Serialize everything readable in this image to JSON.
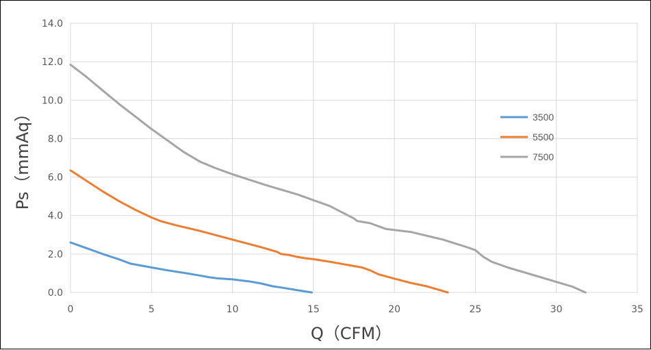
{
  "chart_data": {
    "type": "line",
    "title": "",
    "xlabel": "Q（CFM）",
    "ylabel": "Ps（mmAq）",
    "xlim": [
      0,
      35
    ],
    "ylim": [
      0,
      14
    ],
    "x_ticks": [
      "0",
      "5",
      "10",
      "15",
      "20",
      "25",
      "30",
      "35"
    ],
    "y_ticks": [
      "0.0",
      "2.0",
      "4.0",
      "6.0",
      "8.0",
      "10.0",
      "12.0",
      "14.0"
    ],
    "grid": true,
    "legend_position": "right",
    "series": [
      {
        "name": "3500",
        "color": "#5B9BD5",
        "points": [
          [
            0,
            2.6
          ],
          [
            1,
            2.3
          ],
          [
            2,
            2.0
          ],
          [
            3,
            1.72
          ],
          [
            3.7,
            1.5
          ],
          [
            5,
            1.3
          ],
          [
            6,
            1.15
          ],
          [
            7,
            1.02
          ],
          [
            8,
            0.88
          ],
          [
            8.5,
            0.8
          ],
          [
            9,
            0.74
          ],
          [
            10,
            0.68
          ],
          [
            11,
            0.58
          ],
          [
            11.7,
            0.48
          ],
          [
            12.5,
            0.32
          ],
          [
            13,
            0.26
          ],
          [
            14,
            0.12
          ],
          [
            14.9,
            0
          ]
        ]
      },
      {
        "name": "5500",
        "color": "#ED7D31",
        "points": [
          [
            0,
            6.35
          ],
          [
            1,
            5.8
          ],
          [
            2,
            5.25
          ],
          [
            3,
            4.75
          ],
          [
            4,
            4.3
          ],
          [
            5,
            3.9
          ],
          [
            5.6,
            3.7
          ],
          [
            6.5,
            3.5
          ],
          [
            8,
            3.2
          ],
          [
            10,
            2.75
          ],
          [
            12,
            2.3
          ],
          [
            12.8,
            2.1
          ],
          [
            13,
            2.0
          ],
          [
            13.5,
            1.95
          ],
          [
            14,
            1.85
          ],
          [
            14.5,
            1.78
          ],
          [
            15,
            1.73
          ],
          [
            16,
            1.6
          ],
          [
            17,
            1.45
          ],
          [
            18,
            1.3
          ],
          [
            18.5,
            1.15
          ],
          [
            19,
            0.95
          ],
          [
            20,
            0.72
          ],
          [
            21,
            0.5
          ],
          [
            22,
            0.32
          ],
          [
            23.3,
            0
          ]
        ]
      },
      {
        "name": "7500",
        "color": "#A5A5A5",
        "points": [
          [
            0,
            11.85
          ],
          [
            1,
            11.2
          ],
          [
            2,
            10.5
          ],
          [
            3,
            9.8
          ],
          [
            4,
            9.15
          ],
          [
            5,
            8.5
          ],
          [
            6,
            7.9
          ],
          [
            7,
            7.3
          ],
          [
            8,
            6.8
          ],
          [
            9,
            6.45
          ],
          [
            10,
            6.15
          ],
          [
            12,
            5.6
          ],
          [
            14,
            5.1
          ],
          [
            16,
            4.5
          ],
          [
            17.5,
            3.85
          ],
          [
            17.7,
            3.72
          ],
          [
            18.5,
            3.6
          ],
          [
            19,
            3.45
          ],
          [
            19.5,
            3.3
          ],
          [
            21,
            3.15
          ],
          [
            23,
            2.75
          ],
          [
            24.5,
            2.35
          ],
          [
            25,
            2.2
          ],
          [
            25.5,
            1.85
          ],
          [
            26,
            1.6
          ],
          [
            27,
            1.3
          ],
          [
            28,
            1.05
          ],
          [
            29,
            0.8
          ],
          [
            30,
            0.55
          ],
          [
            31,
            0.3
          ],
          [
            31.8,
            0
          ]
        ]
      }
    ]
  }
}
